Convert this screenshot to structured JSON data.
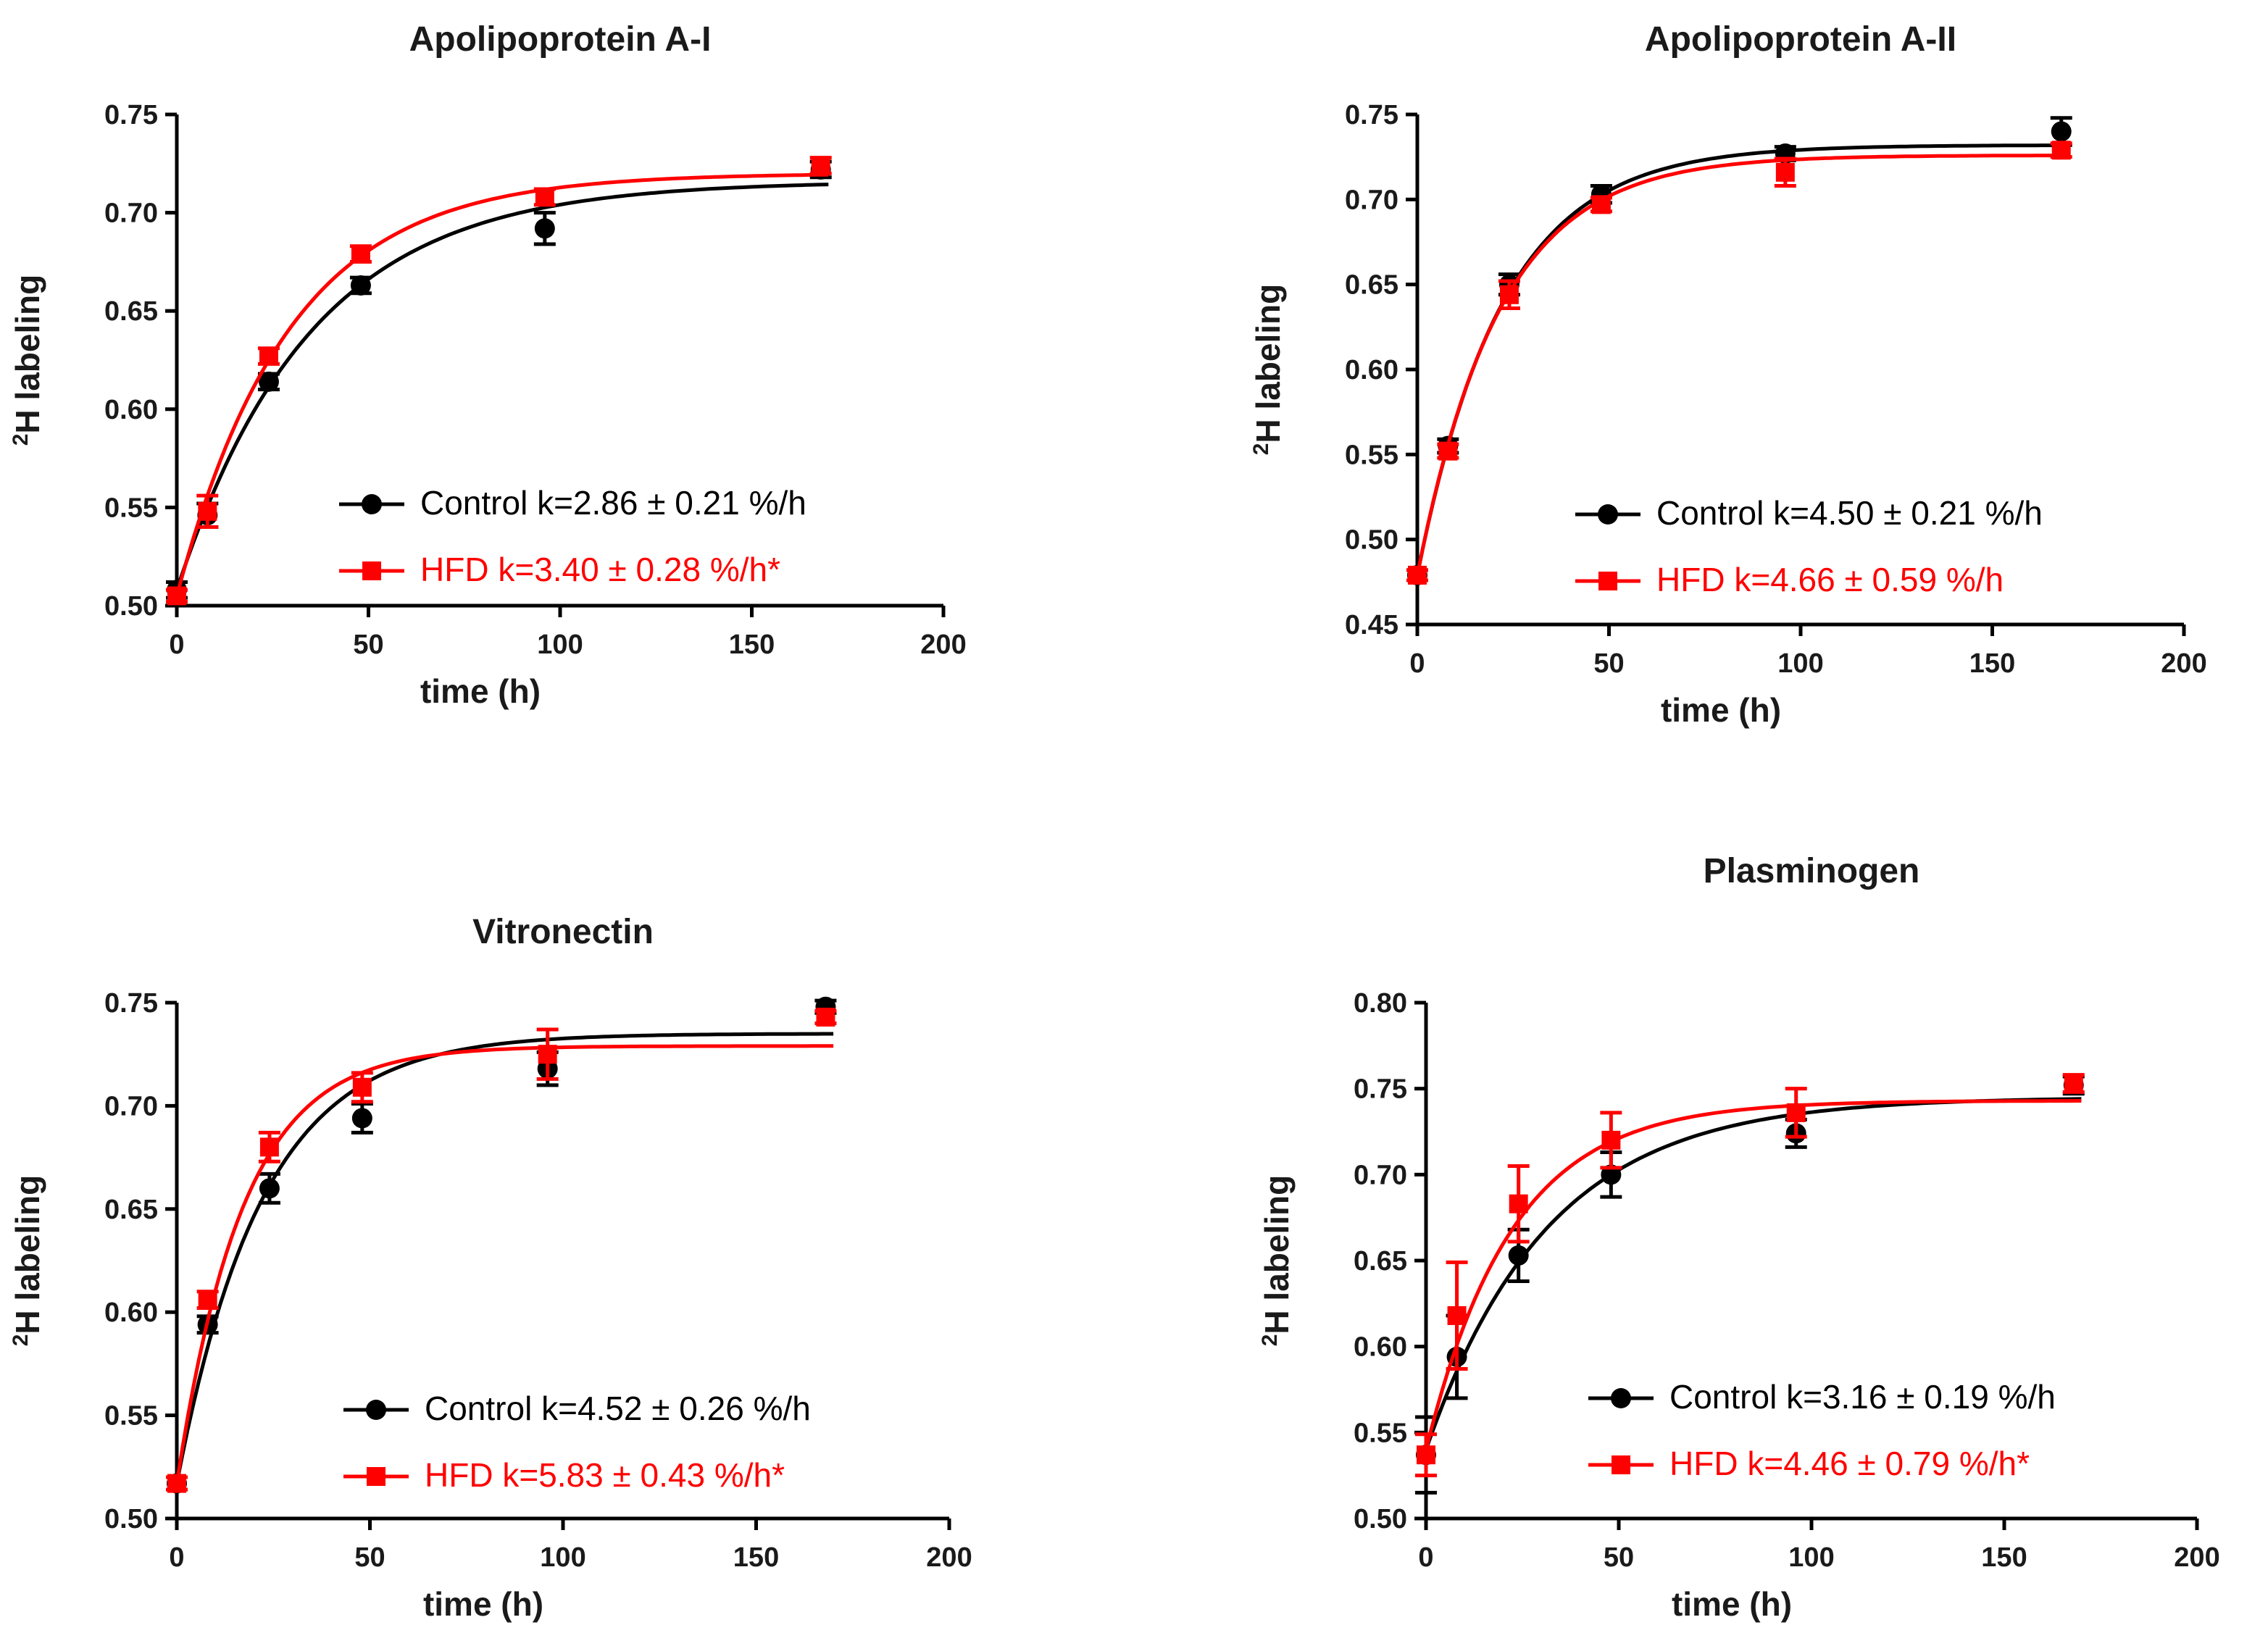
{
  "colors": {
    "control": "#000000",
    "hfd": "#ff0000"
  },
  "chart_data": [
    {
      "type": "scatter",
      "title": "Apolipoprotein A-I",
      "xlabel": "time (h)",
      "ylabel_sup": "2",
      "ylabel": "H labeling",
      "xlim": [
        0,
        200
      ],
      "ylim": [
        0.5,
        0.75
      ],
      "xticks": [
        "0",
        "50",
        "100",
        "150",
        "200"
      ],
      "yticks": [
        "0.50",
        "0.55",
        "0.60",
        "0.65",
        "0.70",
        "0.75"
      ],
      "series": [
        {
          "name": "Control",
          "legend_prefix": "Control",
          "legend_k": "k=2.86 ± 0.21 %/h",
          "x": [
            0,
            8,
            24,
            48,
            96,
            168
          ],
          "y": [
            0.508,
            0.546,
            0.614,
            0.663,
            0.692,
            0.722
          ],
          "err": [
            0.004,
            0.006,
            0.004,
            0.004,
            0.008,
            0.004
          ],
          "fit": {
            "a": 0.508,
            "b": 0.716,
            "k": 0.0286,
            "xmax": 170
          }
        },
        {
          "name": "HFD",
          "legend_prefix": "HFD",
          "legend_k": "k=3.40 ± 0.28 %/h*",
          "x": [
            0,
            8,
            24,
            48,
            96,
            168
          ],
          "y": [
            0.505,
            0.548,
            0.627,
            0.679,
            0.708,
            0.724
          ],
          "err": [
            0.003,
            0.008,
            0.004,
            0.004,
            0.004,
            0.004
          ],
          "fit": {
            "a": 0.505,
            "b": 0.72,
            "k": 0.034,
            "xmax": 170
          }
        }
      ]
    },
    {
      "type": "scatter",
      "title": "Apolipoprotein A-II",
      "xlabel": "time (h)",
      "ylabel_sup": "2",
      "ylabel": "H labeling",
      "xlim": [
        0,
        200
      ],
      "ylim": [
        0.45,
        0.75
      ],
      "xticks": [
        "0",
        "50",
        "100",
        "150",
        "200"
      ],
      "yticks": [
        "0.45",
        "0.50",
        "0.55",
        "0.60",
        "0.65",
        "0.70",
        "0.75"
      ],
      "series": [
        {
          "name": "Control",
          "legend_prefix": "Control",
          "legend_k": "k=4.50 ± 0.21 %/h",
          "x": [
            0,
            8,
            24,
            48,
            96,
            168
          ],
          "y": [
            0.479,
            0.555,
            0.65,
            0.703,
            0.727,
            0.74
          ],
          "err": [
            0.003,
            0.004,
            0.006,
            0.005,
            0.004,
            0.008
          ],
          "fit": {
            "a": 0.479,
            "b": 0.732,
            "k": 0.045,
            "xmax": 170
          }
        },
        {
          "name": "HFD",
          "legend_prefix": "HFD",
          "legend_k": "k=4.66 ± 0.59 %/h",
          "x": [
            0,
            8,
            24,
            48,
            96,
            168
          ],
          "y": [
            0.479,
            0.552,
            0.644,
            0.697,
            0.716,
            0.729
          ],
          "err": [
            0.003,
            0.004,
            0.008,
            0.004,
            0.008,
            0.004
          ],
          "fit": {
            "a": 0.479,
            "b": 0.726,
            "k": 0.0466,
            "xmax": 170
          }
        }
      ]
    },
    {
      "type": "scatter",
      "title": "Vitronectin",
      "xlabel": "time (h)",
      "ylabel_sup": "2",
      "ylabel": "H labeling",
      "xlim": [
        0,
        200
      ],
      "ylim": [
        0.5,
        0.75
      ],
      "xticks": [
        "0",
        "50",
        "100",
        "150",
        "200"
      ],
      "yticks": [
        "0.50",
        "0.55",
        "0.60",
        "0.65",
        "0.70",
        "0.75"
      ],
      "series": [
        {
          "name": "Control",
          "legend_prefix": "Control",
          "legend_k": "k=4.52 ± 0.26 %/h",
          "x": [
            0,
            8,
            24,
            48,
            96,
            168
          ],
          "y": [
            0.517,
            0.594,
            0.66,
            0.694,
            0.718,
            0.748
          ],
          "err": [
            0.003,
            0.004,
            0.007,
            0.007,
            0.008,
            0.003
          ],
          "fit": {
            "a": 0.517,
            "b": 0.735,
            "k": 0.0452,
            "xmax": 170
          }
        },
        {
          "name": "HFD",
          "legend_prefix": "HFD",
          "legend_k": "k=5.83 ± 0.43 %/h*",
          "x": [
            0,
            8,
            24,
            48,
            96,
            168
          ],
          "y": [
            0.517,
            0.606,
            0.68,
            0.709,
            0.725,
            0.743
          ],
          "err": [
            0.003,
            0.004,
            0.007,
            0.007,
            0.012,
            0.003
          ],
          "fit": {
            "a": 0.517,
            "b": 0.729,
            "k": 0.0583,
            "xmax": 170
          }
        }
      ]
    },
    {
      "type": "scatter",
      "title": "Plasminogen",
      "xlabel": "time (h)",
      "ylabel_sup": "2",
      "ylabel": "H labeling",
      "xlim": [
        0,
        200
      ],
      "ylim": [
        0.5,
        0.8
      ],
      "xticks": [
        "0",
        "50",
        "100",
        "150",
        "200"
      ],
      "yticks": [
        "0.50",
        "0.55",
        "0.60",
        "0.65",
        "0.70",
        "0.75",
        "0.80"
      ],
      "series": [
        {
          "name": "Control",
          "legend_prefix": "Control",
          "legend_k": "k=3.16 ± 0.19 %/h",
          "x": [
            0,
            8,
            24,
            48,
            96,
            168
          ],
          "y": [
            0.537,
            0.594,
            0.653,
            0.7,
            0.724,
            0.752
          ],
          "err": [
            0.022,
            0.024,
            0.015,
            0.013,
            0.008,
            0.005
          ],
          "fit": {
            "a": 0.54,
            "b": 0.745,
            "k": 0.0316,
            "xmax": 170
          }
        },
        {
          "name": "HFD",
          "legend_prefix": "HFD",
          "legend_k": "k=4.46 ± 0.79 %/h*",
          "x": [
            0,
            8,
            24,
            48,
            96,
            168
          ],
          "y": [
            0.537,
            0.618,
            0.683,
            0.72,
            0.736,
            0.753
          ],
          "err": [
            0.012,
            0.031,
            0.022,
            0.016,
            0.014,
            0.005
          ],
          "fit": {
            "a": 0.54,
            "b": 0.743,
            "k": 0.0446,
            "xmax": 170
          }
        }
      ]
    }
  ]
}
